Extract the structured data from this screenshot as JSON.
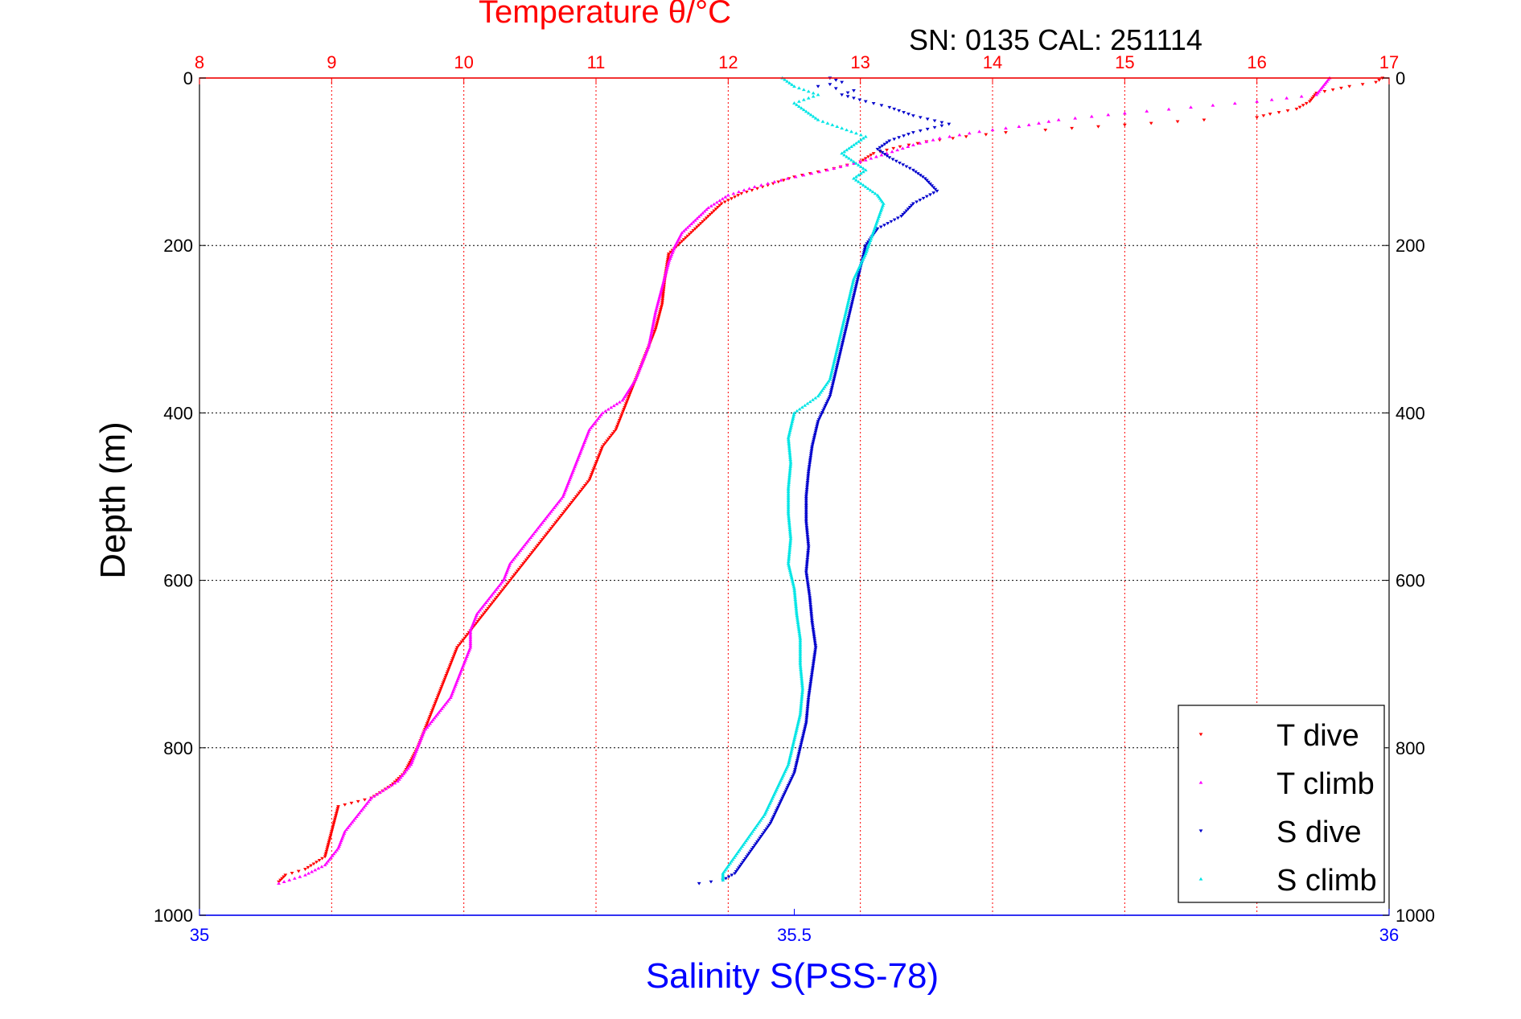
{
  "chart_data": {
    "type": "scatter",
    "title": "Temperature θ/°C",
    "subtitle": "SN: 0135  CAL: 251114",
    "ylabel": "Depth (m)",
    "xlabel_bottom": "Salinity S(PSS-78)",
    "ylim": [
      0,
      1000
    ],
    "y_reversed": true,
    "y_ticks": [
      0,
      200,
      400,
      600,
      800,
      1000
    ],
    "x_top": {
      "label": "Temperature θ/°C",
      "range": [
        8,
        17
      ],
      "ticks": [
        8,
        9,
        10,
        11,
        12,
        13,
        14,
        15,
        16,
        17
      ]
    },
    "x_bottom": {
      "label": "Salinity S(PSS-78)",
      "range": [
        35,
        36
      ],
      "ticks": [
        "35",
        "35.5",
        "36"
      ]
    },
    "grid": true,
    "legend_position": "bottom-right",
    "colors": {
      "title": "#ff0000",
      "bottom_axis": "#0000ff",
      "t_dive": "#ff0000",
      "t_climb": "#ff00ff",
      "s_dive": "#0000cc",
      "s_climb": "#00e5e5",
      "grid_vertical": "#ff0000",
      "grid_horizontal": "#000000"
    },
    "series": [
      {
        "name": "T dive",
        "axis": "temperature",
        "points": [
          [
            16.95,
            0
          ],
          [
            16.9,
            5
          ],
          [
            16.7,
            10
          ],
          [
            16.45,
            18
          ],
          [
            16.4,
            28
          ],
          [
            16.3,
            37
          ],
          [
            16.1,
            43
          ],
          [
            16.0,
            47
          ],
          [
            15.6,
            50
          ],
          [
            15.2,
            54
          ],
          [
            14.8,
            58
          ],
          [
            14.4,
            62
          ],
          [
            14.1,
            65
          ],
          [
            13.8,
            70
          ],
          [
            13.5,
            76
          ],
          [
            13.3,
            82
          ],
          [
            13.1,
            90
          ],
          [
            13.0,
            100
          ],
          [
            12.8,
            108
          ],
          [
            12.5,
            118
          ],
          [
            12.3,
            128
          ],
          [
            12.1,
            138
          ],
          [
            11.95,
            150
          ],
          [
            11.85,
            165
          ],
          [
            11.75,
            180
          ],
          [
            11.65,
            195
          ],
          [
            11.55,
            210
          ],
          [
            11.52,
            240
          ],
          [
            11.5,
            270
          ],
          [
            11.45,
            300
          ],
          [
            11.4,
            320
          ],
          [
            11.35,
            340
          ],
          [
            11.3,
            360
          ],
          [
            11.25,
            380
          ],
          [
            11.2,
            400
          ],
          [
            11.15,
            420
          ],
          [
            11.05,
            440
          ],
          [
            11.0,
            460
          ],
          [
            10.95,
            480
          ],
          [
            10.85,
            500
          ],
          [
            10.75,
            520
          ],
          [
            10.65,
            540
          ],
          [
            10.55,
            560
          ],
          [
            10.45,
            580
          ],
          [
            10.35,
            600
          ],
          [
            10.25,
            620
          ],
          [
            10.15,
            640
          ],
          [
            10.05,
            660
          ],
          [
            9.95,
            680
          ],
          [
            9.9,
            700
          ],
          [
            9.85,
            720
          ],
          [
            9.8,
            740
          ],
          [
            9.75,
            760
          ],
          [
            9.7,
            780
          ],
          [
            9.65,
            800
          ],
          [
            9.6,
            815
          ],
          [
            9.55,
            830
          ],
          [
            9.45,
            845
          ],
          [
            9.3,
            860
          ],
          [
            9.05,
            870
          ],
          [
            9.0,
            900
          ],
          [
            8.95,
            930
          ],
          [
            8.8,
            945
          ],
          [
            8.65,
            952
          ],
          [
            8.6,
            960
          ]
        ]
      },
      {
        "name": "T climb",
        "axis": "temperature",
        "points": [
          [
            16.55,
            0
          ],
          [
            16.5,
            10
          ],
          [
            16.45,
            20
          ],
          [
            16.0,
            28
          ],
          [
            15.5,
            35
          ],
          [
            15.0,
            42
          ],
          [
            14.5,
            50
          ],
          [
            14.2,
            58
          ],
          [
            13.9,
            64
          ],
          [
            13.6,
            72
          ],
          [
            13.4,
            80
          ],
          [
            13.2,
            90
          ],
          [
            13.0,
            100
          ],
          [
            12.75,
            110
          ],
          [
            12.45,
            120
          ],
          [
            12.2,
            130
          ],
          [
            12.0,
            140
          ],
          [
            11.85,
            155
          ],
          [
            11.75,
            170
          ],
          [
            11.65,
            185
          ],
          [
            11.6,
            200
          ],
          [
            11.55,
            220
          ],
          [
            11.5,
            250
          ],
          [
            11.45,
            280
          ],
          [
            11.4,
            320
          ],
          [
            11.3,
            360
          ],
          [
            11.2,
            385
          ],
          [
            11.05,
            400
          ],
          [
            10.95,
            420
          ],
          [
            10.9,
            440
          ],
          [
            10.85,
            460
          ],
          [
            10.8,
            480
          ],
          [
            10.75,
            500
          ],
          [
            10.65,
            520
          ],
          [
            10.55,
            540
          ],
          [
            10.45,
            560
          ],
          [
            10.35,
            580
          ],
          [
            10.3,
            600
          ],
          [
            10.2,
            620
          ],
          [
            10.1,
            640
          ],
          [
            10.05,
            660
          ],
          [
            10.05,
            680
          ],
          [
            10.0,
            700
          ],
          [
            9.95,
            720
          ],
          [
            9.9,
            740
          ],
          [
            9.8,
            760
          ],
          [
            9.7,
            780
          ],
          [
            9.65,
            800
          ],
          [
            9.6,
            820
          ],
          [
            9.5,
            840
          ],
          [
            9.3,
            860
          ],
          [
            9.2,
            880
          ],
          [
            9.1,
            900
          ],
          [
            9.05,
            920
          ],
          [
            8.95,
            940
          ],
          [
            8.8,
            952
          ],
          [
            8.6,
            962
          ]
        ]
      },
      {
        "name": "S dive",
        "axis": "salinity",
        "points": [
          [
            35.53,
            0
          ],
          [
            35.54,
            5
          ],
          [
            35.52,
            10
          ],
          [
            35.55,
            15
          ],
          [
            35.54,
            20
          ],
          [
            35.56,
            28
          ],
          [
            35.58,
            35
          ],
          [
            35.6,
            45
          ],
          [
            35.63,
            55
          ],
          [
            35.6,
            65
          ],
          [
            35.58,
            75
          ],
          [
            35.57,
            85
          ],
          [
            35.58,
            95
          ],
          [
            35.6,
            110
          ],
          [
            35.61,
            120
          ],
          [
            35.62,
            135
          ],
          [
            35.6,
            150
          ],
          [
            35.59,
            165
          ],
          [
            35.57,
            180
          ],
          [
            35.56,
            200
          ],
          [
            35.555,
            230
          ],
          [
            35.55,
            260
          ],
          [
            35.545,
            290
          ],
          [
            35.54,
            320
          ],
          [
            35.535,
            350
          ],
          [
            35.53,
            380
          ],
          [
            35.52,
            410
          ],
          [
            35.515,
            440
          ],
          [
            35.512,
            470
          ],
          [
            35.51,
            500
          ],
          [
            35.51,
            530
          ],
          [
            35.512,
            560
          ],
          [
            35.51,
            590
          ],
          [
            35.513,
            620
          ],
          [
            35.515,
            650
          ],
          [
            35.518,
            680
          ],
          [
            35.515,
            710
          ],
          [
            35.512,
            740
          ],
          [
            35.51,
            770
          ],
          [
            35.505,
            800
          ],
          [
            35.5,
            830
          ],
          [
            35.49,
            860
          ],
          [
            35.48,
            890
          ],
          [
            35.47,
            910
          ],
          [
            35.46,
            930
          ],
          [
            35.45,
            950
          ],
          [
            35.44,
            958
          ],
          [
            35.42,
            962
          ]
        ]
      },
      {
        "name": "S climb",
        "axis": "salinity",
        "points": [
          [
            35.49,
            0
          ],
          [
            35.5,
            10
          ],
          [
            35.52,
            20
          ],
          [
            35.5,
            30
          ],
          [
            35.51,
            40
          ],
          [
            35.52,
            50
          ],
          [
            35.54,
            60
          ],
          [
            35.56,
            70
          ],
          [
            35.55,
            80
          ],
          [
            35.54,
            90
          ],
          [
            35.55,
            100
          ],
          [
            35.56,
            110
          ],
          [
            35.55,
            120
          ],
          [
            35.56,
            130
          ],
          [
            35.57,
            140
          ],
          [
            35.575,
            150
          ],
          [
            35.57,
            170
          ],
          [
            35.565,
            190
          ],
          [
            35.56,
            210
          ],
          [
            35.55,
            240
          ],
          [
            35.545,
            270
          ],
          [
            35.54,
            300
          ],
          [
            35.535,
            330
          ],
          [
            35.53,
            360
          ],
          [
            35.52,
            380
          ],
          [
            35.5,
            400
          ],
          [
            35.495,
            430
          ],
          [
            35.497,
            460
          ],
          [
            35.495,
            490
          ],
          [
            35.495,
            520
          ],
          [
            35.497,
            550
          ],
          [
            35.495,
            580
          ],
          [
            35.5,
            610
          ],
          [
            35.502,
            640
          ],
          [
            35.505,
            670
          ],
          [
            35.505,
            700
          ],
          [
            35.507,
            730
          ],
          [
            35.505,
            760
          ],
          [
            35.5,
            790
          ],
          [
            35.495,
            820
          ],
          [
            35.485,
            850
          ],
          [
            35.475,
            880
          ],
          [
            35.465,
            900
          ],
          [
            35.455,
            920
          ],
          [
            35.445,
            940
          ],
          [
            35.44,
            950
          ],
          [
            35.44,
            958
          ]
        ]
      }
    ]
  }
}
